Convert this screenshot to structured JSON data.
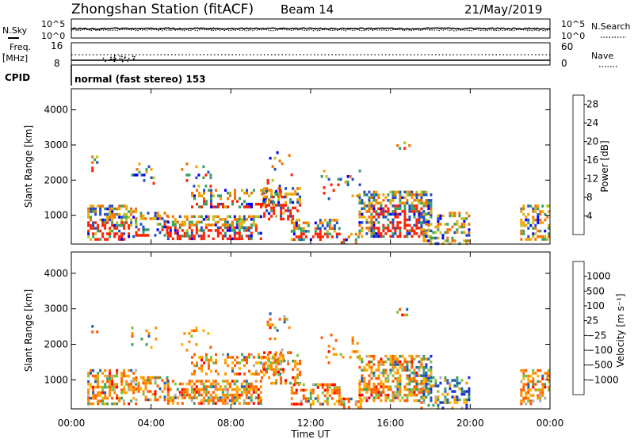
{
  "header": {
    "station": "Zhongshan Station (fitACF)",
    "beam": "Beam 14",
    "date": "21/May/2019"
  },
  "noise_panel": {
    "left_label": "N.Sky",
    "left_ticks": [
      "10^5",
      "10^0"
    ],
    "right_ticks": [
      "10^5",
      "10^0"
    ],
    "right_label": "N.Search"
  },
  "freq_panel": {
    "left_label_line1": "Freq.",
    "left_label_line2": "[MHz]",
    "left_ticks": [
      "16",
      "8"
    ],
    "right_ticks": [
      "60",
      "0"
    ],
    "right_label": "Nave"
  },
  "cpid": {
    "label": "CPID",
    "mode": "normal (fast stereo) 153"
  },
  "colors": {
    "power": [
      "#0000ff",
      "#2050c0",
      "#38a060",
      "#c0c020",
      "#f5a000",
      "#f07000",
      "#ff2000"
    ],
    "velocity": [
      "#ff0000",
      "#ff5a00",
      "#ff8c00",
      "#ffb000",
      "#b0b0b0",
      "#80c040",
      "#40a060",
      "#2060b0",
      "#1830d0"
    ]
  },
  "chart_data": [
    {
      "type": "heatmap",
      "panel": "power",
      "ylabel": "Slant Range [km]",
      "x_ticks": [
        "00:00",
        "04:00",
        "08:00",
        "12:00",
        "16:00",
        "20:00",
        "00:00"
      ],
      "y_ticks": [
        "1000",
        "2000",
        "3000",
        "4000"
      ],
      "ylim": [
        180,
        4600
      ],
      "xlim_hours": [
        0,
        24
      ],
      "colorbar": {
        "label": "Power [dB]",
        "ticks": [
          "4",
          "8",
          "12",
          "16",
          "20",
          "24",
          "28"
        ],
        "range": [
          0,
          30
        ]
      }
    },
    {
      "type": "heatmap",
      "panel": "velocity",
      "ylabel": "Slant Range [km]",
      "x_ticks": [
        "00:00",
        "04:00",
        "08:00",
        "12:00",
        "16:00",
        "20:00",
        "00:00"
      ],
      "y_ticks": [
        "1000",
        "2000",
        "3000",
        "4000"
      ],
      "ylim": [
        180,
        4600
      ],
      "xlim_hours": [
        0,
        24
      ],
      "xlabel": "Time UT",
      "colorbar": {
        "label": "Velocity [m s⁻¹]",
        "ticks": [
          "1000",
          "500",
          "100",
          "25",
          "−25",
          "−100",
          "−500",
          "−1000"
        ]
      }
    }
  ]
}
